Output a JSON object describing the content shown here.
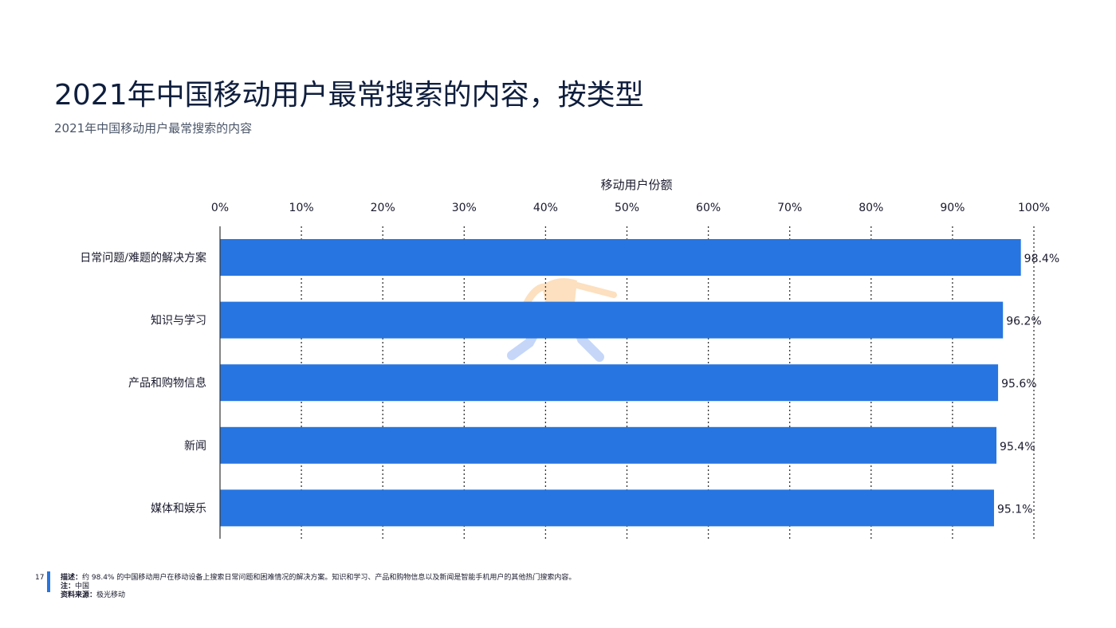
{
  "page": {
    "title": "2021年中国移动用户最常搜索的内容，按类型",
    "subtitle": "2021年中国移动用户最常搜索的内容",
    "page_number": "17",
    "footer": {
      "description_label": "描述",
      "description_text": "约 98.4% 的中国移动用户在移动设备上搜索日常问题和困难情况的解决方案。知识和学习、产品和购物信息以及新闻是智能手机用户的其他热门搜索内容。",
      "note_label": "注",
      "note_text": "中国",
      "source_label": "资料来源",
      "source_text": "极光移动"
    }
  },
  "chart_data": {
    "type": "bar",
    "orientation": "horizontal",
    "title": "",
    "xlabel": "移动用户份额",
    "ylabel": "",
    "categories": [
      "日常问题/难题的解决方案",
      "知识与学习",
      "产品和购物信息",
      "新闻",
      "媒体和娱乐"
    ],
    "values": [
      98.4,
      96.2,
      95.6,
      95.4,
      95.1
    ],
    "value_labels": [
      "98.4%",
      "96.2%",
      "95.6%",
      "95.4%",
      "95.1%"
    ],
    "xlim": [
      0,
      100
    ],
    "xticks": [
      "0%",
      "10%",
      "20%",
      "30%",
      "40%",
      "50%",
      "60%",
      "70%",
      "80%",
      "90%",
      "100%"
    ],
    "grid": "vertical dotted",
    "axis_position": "top",
    "colors": {
      "bar": "#2775e0",
      "grid": "#333333",
      "axis": "#333333"
    }
  }
}
